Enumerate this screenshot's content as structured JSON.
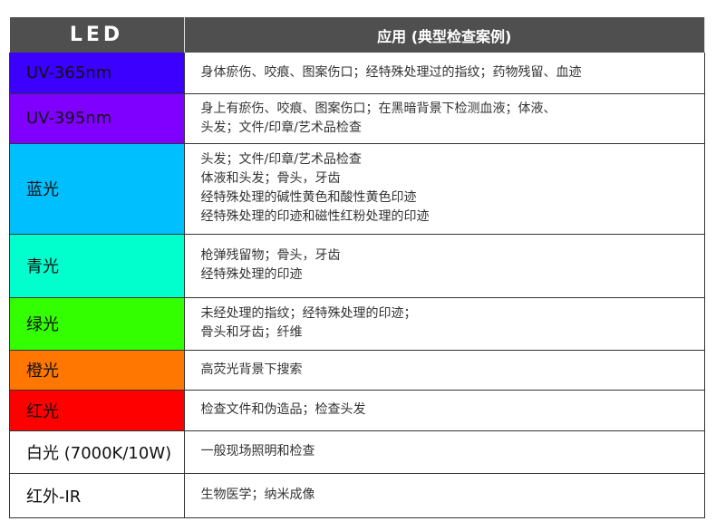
{
  "header": {
    "led": "LED",
    "application": "应用 (典型检查案例)"
  },
  "rows": [
    {
      "name": "UV-365nm",
      "color": "#3c00ff",
      "lines": [
        "身体瘀伤、咬痕、图案伤口；经特殊处理过的指纹；药物残留、血迹"
      ]
    },
    {
      "name": "UV-395nm",
      "color": "#8000ff",
      "lines": [
        "身上有瘀伤、咬痕、图案伤口；在黑暗背景下检测血液；体液、",
        "头发；文件/印章/艺术品检查"
      ]
    },
    {
      "name": "蓝光",
      "color": "#00bfff",
      "lines": [
        "头发；文件/印章/艺术品检查",
        "体液和头发；骨头，牙齿",
        "经特殊处理的碱性黄色和酸性黄色印迹",
        "经特殊处理的印迹和磁性红粉处理的印迹"
      ]
    },
    {
      "name": "青光",
      "color": "#00ffcc",
      "lines": [
        "枪弹残留物；骨头，牙齿",
        "经特殊处理的印迹"
      ]
    },
    {
      "name": "绿光",
      "color": "#33ff00",
      "lines": [
        "未经处理的指纹；经特殊处理的印迹；",
        "骨头和牙齿；纤维"
      ]
    },
    {
      "name": "橙光",
      "color": "#ff7700",
      "lines": [
        "高荧光背景下搜索"
      ]
    },
    {
      "name": "红光",
      "color": "#ff0000",
      "lines": [
        "检查文件和伪造品；检查头发"
      ]
    },
    {
      "name": "白光 (7000K/10W)",
      "color": "#ffffff",
      "lines": [
        "一般现场照明和检查"
      ]
    },
    {
      "name": "红外-IR",
      "color": "#ffffff",
      "lines": [
        "生物医学；纳米成像"
      ]
    }
  ]
}
